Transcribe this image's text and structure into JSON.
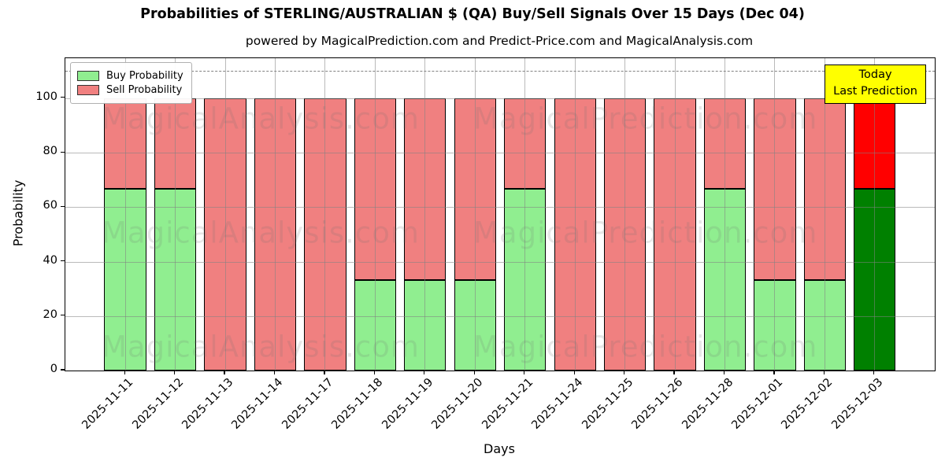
{
  "header": {
    "title": "Probabilities of STERLING/AUSTRALIAN $ (QA) Buy/Sell Signals Over 15 Days (Dec 04)",
    "subtitle": "powered by MagicalPrediction.com and Predict-Price.com and MagicalAnalysis.com"
  },
  "annotation_box": {
    "lines": [
      "Today",
      "Last Prediction"
    ],
    "bg_color": "#ffff00",
    "border_color": "#000000"
  },
  "watermarks": {
    "left_text": "MagicalAnalysis.com",
    "right_text": "MagicalPrediction.com"
  },
  "chart_data": {
    "type": "bar",
    "stacked": true,
    "title": "Probabilities of STERLING/AUSTRALIAN $ (QA) Buy/Sell Signals Over 15 Days (Dec 04)",
    "subtitle": "powered by MagicalPrediction.com and Predict-Price.com and MagicalAnalysis.com",
    "xlabel": "Days",
    "ylabel": "Probability",
    "categories": [
      "2025-11-11",
      "2025-11-12",
      "2025-11-13",
      "2025-11-14",
      "2025-11-17",
      "2025-11-18",
      "2025-11-19",
      "2025-11-20",
      "2025-11-21",
      "2025-11-24",
      "2025-11-25",
      "2025-11-26",
      "2025-11-28",
      "2025-12-01",
      "2025-12-02",
      "2025-12-03"
    ],
    "series": [
      {
        "name": "Buy Probability",
        "color": "#90ee90",
        "today_color": "#008000",
        "values": [
          66.67,
          66.67,
          0,
          0,
          0,
          33.33,
          33.33,
          33.33,
          66.67,
          0,
          0,
          0,
          66.67,
          33.33,
          33.33,
          66.67
        ]
      },
      {
        "name": "Sell Probability",
        "color": "#f08080",
        "today_color": "#ff0000",
        "values": [
          33.33,
          33.33,
          100,
          100,
          100,
          66.67,
          66.67,
          66.67,
          33.33,
          100,
          100,
          100,
          33.33,
          66.67,
          66.67,
          33.33
        ]
      }
    ],
    "ylim": [
      0,
      114.7
    ],
    "yticks": [
      0,
      20,
      40,
      60,
      80,
      100
    ],
    "dashed_line_y": 110,
    "today_index": 15,
    "grid": true,
    "legend_position": "upper left",
    "bar_border_color": "#000000",
    "grid_color": "#b0b0b0",
    "dashed_line_color": "#828282"
  }
}
